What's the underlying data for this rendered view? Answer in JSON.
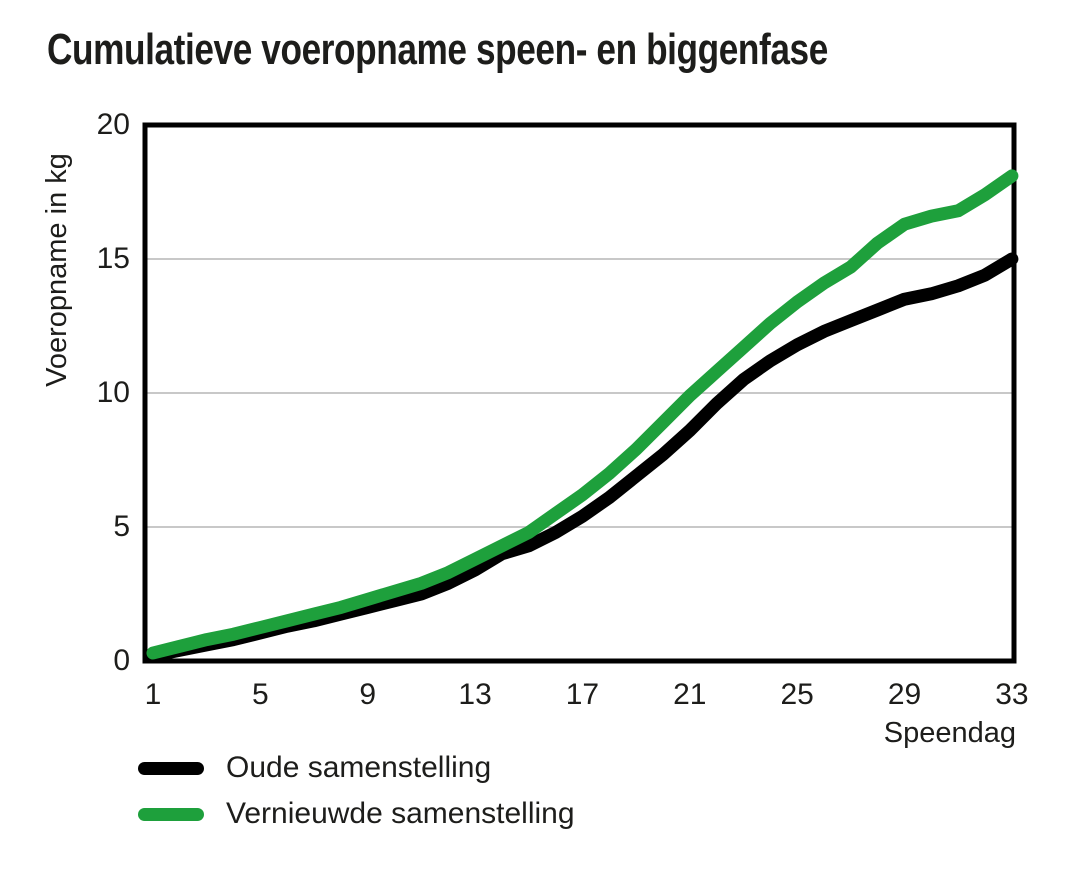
{
  "colors": {
    "background": "#ffffff",
    "text": "#1d1d1b",
    "axis": "#000000",
    "grid": "#c8c8c8",
    "series_old": "#000000",
    "series_new": "#1ea03c"
  },
  "chart_data": {
    "type": "line",
    "title": "Cumulatieve voeropname speen- en biggenfase",
    "xlabel": "Speendag",
    "ylabel": "Voeropname in kg",
    "xlim": [
      1,
      33
    ],
    "ylim": [
      0,
      20
    ],
    "x_ticks": [
      1,
      5,
      9,
      13,
      17,
      21,
      25,
      29,
      33
    ],
    "y_ticks": [
      0,
      5,
      10,
      15,
      20
    ],
    "grid": "horizontal gridlines at 5, 10 and 15; full black border box around plot",
    "legend_position": "below chart, bottom-left",
    "x": [
      1,
      2,
      3,
      4,
      5,
      6,
      7,
      8,
      9,
      10,
      11,
      12,
      13,
      14,
      15,
      16,
      17,
      18,
      19,
      20,
      21,
      22,
      23,
      24,
      25,
      26,
      27,
      28,
      29,
      30,
      31,
      32,
      33
    ],
    "series": [
      {
        "key": "oude",
        "name": "Oude samenstelling",
        "color": "#000000",
        "values": [
          0.2,
          0.4,
          0.6,
          0.8,
          1.05,
          1.3,
          1.5,
          1.75,
          2.0,
          2.25,
          2.5,
          2.9,
          3.4,
          4.0,
          4.3,
          4.8,
          5.4,
          6.1,
          6.9,
          7.7,
          8.6,
          9.6,
          10.5,
          11.2,
          11.8,
          12.3,
          12.7,
          13.1,
          13.5,
          13.7,
          14.0,
          14.4,
          15.0
        ]
      },
      {
        "key": "vernieuwde",
        "name": "Vernieuwde samenstelling",
        "color": "#1ea03c",
        "values": [
          0.3,
          0.55,
          0.8,
          1.0,
          1.25,
          1.5,
          1.75,
          2.0,
          2.3,
          2.6,
          2.9,
          3.3,
          3.8,
          4.3,
          4.8,
          5.5,
          6.2,
          7.0,
          7.9,
          8.9,
          9.9,
          10.8,
          11.7,
          12.6,
          13.4,
          14.1,
          14.7,
          15.6,
          16.3,
          16.6,
          16.8,
          17.4,
          18.1
        ]
      }
    ]
  }
}
